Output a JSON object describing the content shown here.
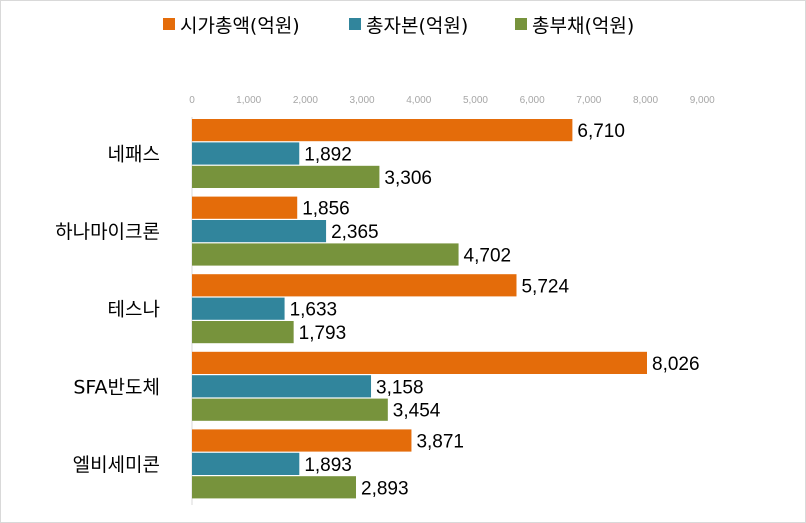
{
  "chart_data": {
    "type": "bar",
    "orientation": "horizontal",
    "categories": [
      "네패스",
      "하나마이크론",
      "테스나",
      "SFA반도체",
      "엘비세미콘"
    ],
    "series": [
      {
        "name": "시가총액(억원)",
        "color": "#e46c0a",
        "values": [
          6710,
          1856,
          5724,
          8026,
          3871
        ]
      },
      {
        "name": "총자본(억원)",
        "color": "#31859c",
        "values": [
          1892,
          2365,
          1633,
          3158,
          1893
        ]
      },
      {
        "name": "총부채(억원)",
        "color": "#77933c",
        "values": [
          3306,
          4702,
          1793,
          3454,
          2893
        ]
      }
    ],
    "value_labels": [
      [
        "6,710",
        "1,892",
        "3,306"
      ],
      [
        "1,856",
        "2,365",
        "4,702"
      ],
      [
        "5,724",
        "1,633",
        "1,793"
      ],
      [
        "8,026",
        "3,158",
        "3,454"
      ],
      [
        "3,871",
        "1,893",
        "2,893"
      ]
    ],
    "xticks": [
      0,
      1000,
      2000,
      3000,
      4000,
      5000,
      6000,
      7000,
      8000,
      9000
    ],
    "xtick_labels": [
      "0",
      "1,000",
      "2,000",
      "3,000",
      "4,000",
      "5,000",
      "6,000",
      "7,000",
      "8,000",
      "9,000"
    ],
    "xlim": [
      0,
      9000
    ],
    "xaxis_position": "top",
    "legend_position": "top",
    "grid": false
  }
}
